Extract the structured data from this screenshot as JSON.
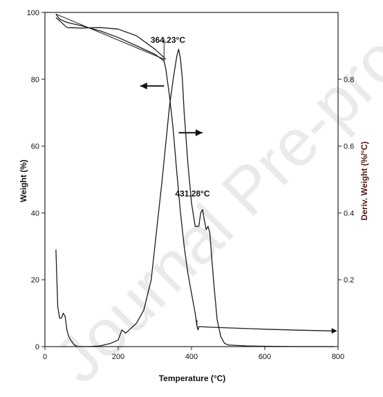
{
  "watermark_text": "Journal Pre-proof",
  "chart_data": {
    "type": "line",
    "xlabel": "Temperature (°C)",
    "ylabel_left": "Weight (%)",
    "ylabel_right": "Deriv. Weight (%/°C)",
    "xlim": [
      0,
      800
    ],
    "ylim_left": [
      0,
      100
    ],
    "ylim_right": [
      0,
      1.0
    ],
    "x_ticks": [
      0,
      200,
      400,
      600,
      800
    ],
    "y_ticks_left": [
      0,
      20,
      40,
      60,
      80,
      100
    ],
    "y_ticks_right": [
      0.2,
      0.4,
      0.6,
      0.8
    ],
    "grid": false,
    "annotations": [
      {
        "text": "364.23°C",
        "x": 364,
        "y": 88
      },
      {
        "text": "431.28°C",
        "x": 431,
        "y": 42
      }
    ],
    "arrows": [
      {
        "direction": "left",
        "points_to_axis": "left",
        "x_from": 325,
        "x_to": 260,
        "y": 78
      },
      {
        "direction": "right",
        "points_to_axis": "right",
        "x_from": 365,
        "x_to": 430,
        "y": 64
      }
    ],
    "series": [
      {
        "axis": "left",
        "x": [
          30,
          40,
          60,
          80,
          100,
          150,
          200,
          250,
          300,
          325,
          330,
          340,
          350,
          360,
          370,
          380,
          390,
          400,
          410,
          415,
          418,
          420,
          450,
          500,
          600,
          700,
          790
        ],
        "y": [
          99.5,
          98,
          97,
          96.5,
          96,
          94.5,
          92.5,
          90,
          87.5,
          85.5,
          83,
          75,
          65,
          52,
          40,
          30,
          22,
          16,
          10,
          6,
          5,
          6,
          5.8,
          5.6,
          5.2,
          4.9,
          4.7
        ]
      },
      {
        "axis": "right",
        "x": [
          30,
          35,
          40,
          45,
          50,
          55,
          60,
          65,
          70,
          80,
          90,
          100,
          120,
          150,
          180,
          200,
          210,
          220,
          230,
          250,
          270,
          290,
          300,
          320,
          340,
          350,
          360,
          365,
          370,
          375,
          380,
          390,
          400,
          410,
          420,
          425,
          430,
          435,
          440,
          445,
          450,
          460,
          470,
          480,
          490,
          500,
          550,
          600,
          700,
          790
        ],
        "y": [
          0.29,
          0.12,
          0.085,
          0.085,
          0.1,
          0.09,
          0.05,
          0.03,
          0.02,
          0.005,
          0.0,
          0.0,
          0.0,
          0.002,
          0.01,
          0.02,
          0.05,
          0.04,
          0.05,
          0.07,
          0.11,
          0.2,
          0.3,
          0.5,
          0.72,
          0.8,
          0.87,
          0.89,
          0.86,
          0.8,
          0.7,
          0.55,
          0.43,
          0.36,
          0.36,
          0.4,
          0.41,
          0.38,
          0.35,
          0.36,
          0.34,
          0.2,
          0.08,
          0.03,
          0.01,
          0.005,
          0.002,
          0.001,
          0.0,
          0.0
        ]
      },
      {
        "axis": "left",
        "x": [
          30,
          60,
          100,
          150,
          200,
          250,
          300,
          330
        ],
        "y": [
          98.5,
          95.5,
          95.3,
          95.5,
          95,
          93,
          89,
          86
        ]
      }
    ]
  }
}
